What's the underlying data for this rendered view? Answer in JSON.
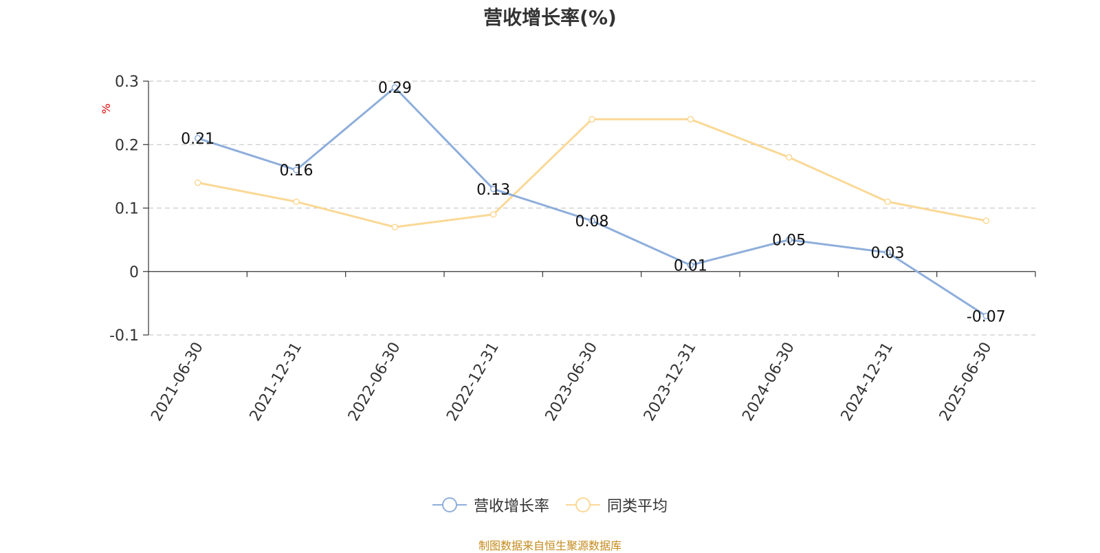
{
  "title": "营收增长率(%)",
  "source_note": "制图数据来自恒生聚源数据库",
  "colors": {
    "series_1": "#8eaedb",
    "series_2": "#fad896",
    "axis": "#333333",
    "grid": "#cccccc",
    "unit_label": "#e60000",
    "source_text": "#c48a1c"
  },
  "chart_data": {
    "type": "line",
    "title": "营收增长率(%)",
    "ylabel": "%",
    "xlabel": "",
    "ylim": [
      -0.1,
      0.3
    ],
    "yticks": [
      -0.1,
      0,
      0.1,
      0.2,
      0.3
    ],
    "ytick_labels": [
      "-0.1",
      "0",
      "0.1",
      "0.2",
      "0.3"
    ],
    "grid": true,
    "legend_position": "bottom-center",
    "categories": [
      "2021-06-30",
      "2021-12-31",
      "2022-06-30",
      "2022-12-31",
      "2023-06-30",
      "2023-12-31",
      "2024-06-30",
      "2024-12-31",
      "2025-06-30"
    ],
    "series": [
      {
        "name": "营收增长率",
        "color": "#8eaedb",
        "values": [
          0.21,
          0.16,
          0.29,
          0.13,
          0.08,
          0.01,
          0.05,
          0.03,
          -0.07
        ],
        "data_labels": [
          "0.21",
          "0.16",
          "0.29",
          "0.13",
          "0.08",
          "0.01",
          "0.05",
          "0.03",
          "-0.07"
        ],
        "show_labels": true
      },
      {
        "name": "同类平均",
        "color": "#fad896",
        "values": [
          0.14,
          0.11,
          0.07,
          0.09,
          0.24,
          0.24,
          0.18,
          0.11,
          0.08
        ],
        "show_labels": false
      }
    ]
  }
}
